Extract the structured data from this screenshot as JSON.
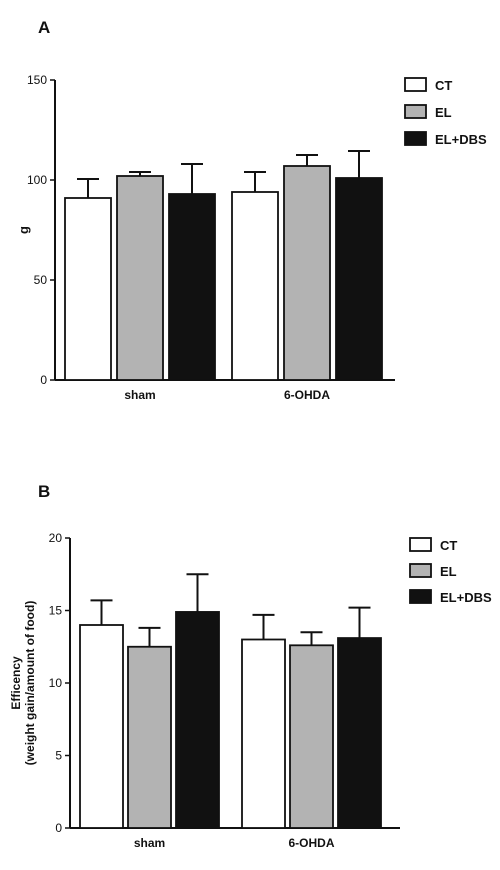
{
  "chart_data": [
    {
      "panel": "A",
      "type": "bar",
      "categories": [
        "sham",
        "6-OHDA"
      ],
      "series": [
        {
          "name": "CT",
          "values": [
            91,
            94
          ],
          "errors": [
            9.5,
            10
          ],
          "color": "#ffffff"
        },
        {
          "name": "EL",
          "values": [
            102,
            107
          ],
          "errors": [
            2,
            5.5
          ],
          "color": "#b3b3b3"
        },
        {
          "name": "EL+DBS",
          "values": [
            93,
            101
          ],
          "errors": [
            15,
            13.5
          ],
          "color": "#111111"
        }
      ],
      "ylabel": "g",
      "xlabel": "",
      "ylim": [
        0,
        150
      ],
      "yticks": [
        0,
        50,
        100,
        150
      ],
      "grid": false,
      "legend": "top-right"
    },
    {
      "panel": "B",
      "type": "bar",
      "categories": [
        "sham",
        "6-OHDA"
      ],
      "series": [
        {
          "name": "CT",
          "values": [
            14.0,
            13.0
          ],
          "errors": [
            1.7,
            1.7
          ],
          "color": "#ffffff"
        },
        {
          "name": "EL",
          "values": [
            12.5,
            12.6
          ],
          "errors": [
            1.3,
            0.9
          ],
          "color": "#b3b3b3"
        },
        {
          "name": "EL+DBS",
          "values": [
            14.9,
            13.1
          ],
          "errors": [
            2.6,
            2.1
          ],
          "color": "#111111"
        }
      ],
      "ylabel_lines": [
        "Efficency",
        "(weight gain/amount of food)"
      ],
      "xlabel": "",
      "ylim": [
        0,
        20
      ],
      "yticks": [
        0,
        5,
        10,
        15,
        20
      ],
      "grid": false,
      "legend": "top-right"
    }
  ]
}
